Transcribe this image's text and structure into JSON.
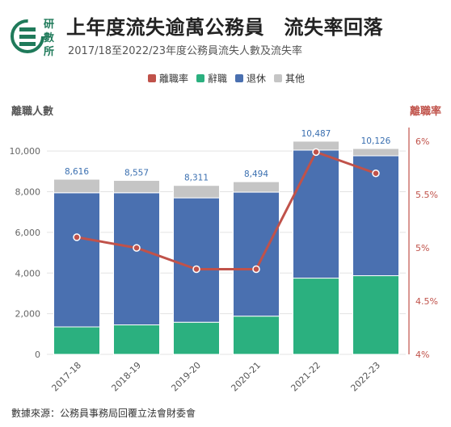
{
  "logo": {
    "text": "研數所",
    "color": "#1f7a5a"
  },
  "header": {
    "title": "上年度流失逾萬公務員　流失率回落",
    "subtitle": "2017/18至2022/23年度公務員流失人數及流失率"
  },
  "source": "數據來源：公務員事務局回覆立法會財委會",
  "chart_data": {
    "type": "bar",
    "stacked": true,
    "categories": [
      "2017-18",
      "2018-19",
      "2019-20",
      "2020-21",
      "2021-22",
      "2022-23"
    ],
    "series": [
      {
        "name": "辭職",
        "color": "#2bb07f",
        "values": [
          1350,
          1450,
          1580,
          1880,
          3750,
          3870
        ]
      },
      {
        "name": "退休",
        "color": "#4a70b0",
        "values": [
          6600,
          6500,
          6120,
          6100,
          6300,
          5900
        ]
      },
      {
        "name": "其他",
        "color": "#c5c5c5",
        "values": [
          666,
          607,
          611,
          514,
          437,
          356
        ]
      }
    ],
    "totals": [
      8616,
      8557,
      8311,
      8494,
      10487,
      10126
    ],
    "total_labels": [
      "8,616",
      "8,557",
      "8,311",
      "8,494",
      "10,487",
      "10,126"
    ],
    "line_series": {
      "name": "離職率",
      "color": "#c0524a",
      "values": [
        5.1,
        5.0,
        4.8,
        4.8,
        5.9,
        5.7
      ]
    },
    "left_axis": {
      "label": "離職人數",
      "ylim": [
        0,
        11000
      ],
      "ticks": [
        0,
        2000,
        4000,
        6000,
        8000,
        10000
      ],
      "tick_labels": [
        "0",
        "2,000",
        "4,000",
        "6,000",
        "8,000",
        "10,000"
      ]
    },
    "right_axis": {
      "label": "離職率",
      "ylim": [
        4,
        6.1
      ],
      "ticks": [
        4,
        4.5,
        5,
        5.5,
        6
      ],
      "tick_labels": [
        "4%",
        "4.5%",
        "5%",
        "5.5%",
        "6%"
      ]
    },
    "legend_order": [
      "離職率",
      "辭職",
      "退休",
      "其他"
    ],
    "legend_position": "top-center",
    "grid": true
  }
}
